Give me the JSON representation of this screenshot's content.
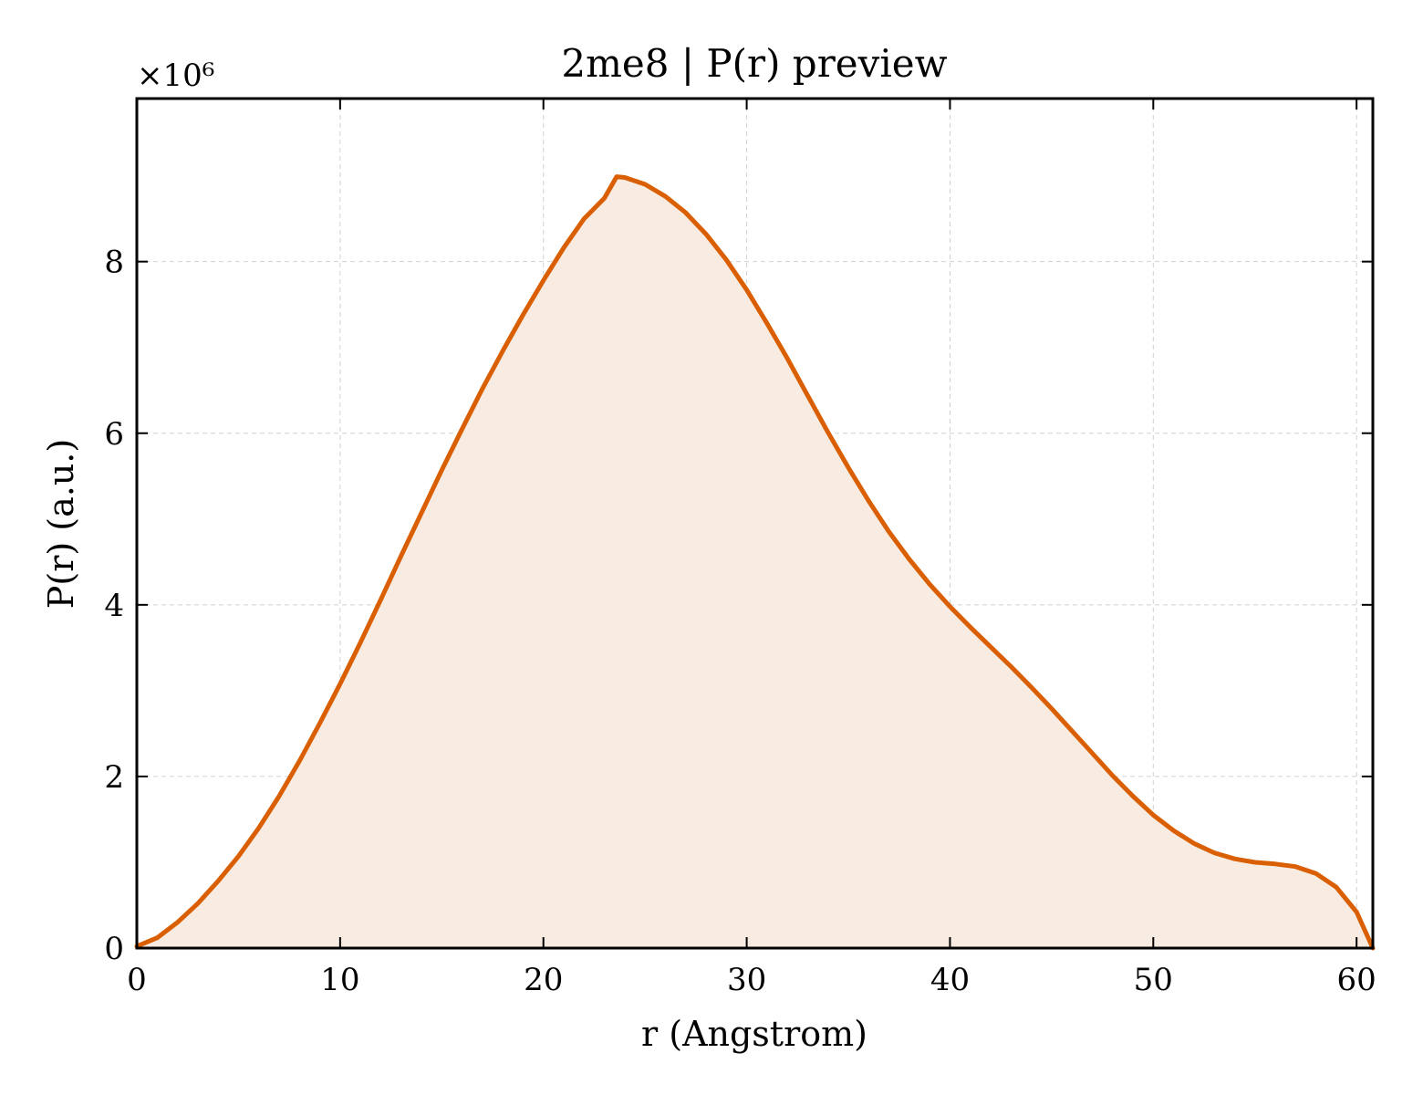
{
  "chart_data": {
    "type": "area",
    "title": "2me8 | P(r) preview",
    "xlabel": "r (Angstrom)",
    "ylabel": "P(r) (a.u.)",
    "y_multiplier": "×10⁶",
    "xlim": [
      0,
      60.8
    ],
    "ylim": [
      0,
      9.9
    ],
    "x_ticks": [
      0,
      10,
      20,
      30,
      40,
      50,
      60
    ],
    "y_ticks": [
      0,
      2,
      4,
      6,
      8
    ],
    "grid": true,
    "colors": {
      "line": "#d95f02",
      "fill": "#f8ebe1"
    },
    "series": [
      {
        "x": [
          0,
          1,
          2,
          3,
          4,
          5,
          6,
          7,
          8,
          9,
          10,
          11,
          12,
          13,
          14,
          15,
          16,
          17,
          18,
          19,
          20,
          21,
          22,
          23,
          23.6,
          24,
          25,
          26,
          27,
          28,
          29,
          30,
          31,
          32,
          33,
          34,
          35,
          36,
          37,
          38,
          39,
          40,
          41,
          42,
          43,
          44,
          45,
          46,
          47,
          48,
          49,
          50,
          51,
          52,
          53,
          54,
          55,
          56,
          57,
          58,
          59,
          60,
          60.8
        ],
        "y": [
          0.02,
          0.12,
          0.3,
          0.52,
          0.78,
          1.07,
          1.4,
          1.77,
          2.18,
          2.62,
          3.08,
          3.56,
          4.06,
          4.57,
          5.07,
          5.57,
          6.05,
          6.52,
          6.96,
          7.38,
          7.78,
          8.16,
          8.5,
          8.74,
          8.99,
          8.98,
          8.9,
          8.76,
          8.57,
          8.32,
          8.02,
          7.67,
          7.28,
          6.87,
          6.44,
          6.01,
          5.6,
          5.21,
          4.85,
          4.53,
          4.24,
          3.98,
          3.74,
          3.51,
          3.28,
          3.04,
          2.79,
          2.53,
          2.27,
          2.01,
          1.77,
          1.55,
          1.37,
          1.22,
          1.11,
          1.04,
          1.0,
          0.98,
          0.95,
          0.87,
          0.71,
          0.42,
          0.0
        ]
      }
    ]
  }
}
